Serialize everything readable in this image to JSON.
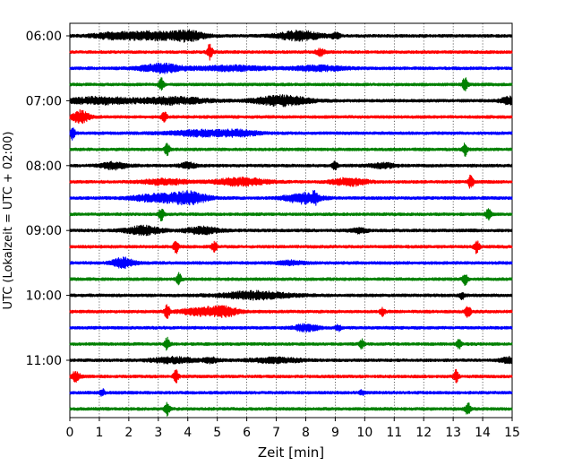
{
  "chart_data": {
    "type": "line",
    "title": "",
    "xlabel": "Zeit  [min]",
    "ylabel": "UTC (Lokalzeit = UTC + 02:00)",
    "xlim": [
      0,
      15
    ],
    "x_ticks": [
      "0",
      "1",
      "2",
      "3",
      "4",
      "5",
      "6",
      "7",
      "8",
      "9",
      "10",
      "11",
      "12",
      "13",
      "14",
      "15"
    ],
    "hour_labels": [
      "06:00",
      "07:00",
      "08:00",
      "09:00",
      "10:00",
      "11:00"
    ],
    "grid": "vertical dotted at each minute",
    "legend": "none",
    "series_colors": [
      "#000000",
      "#ff0000",
      "#0000ff",
      "#008000"
    ],
    "traces": [
      {
        "start": "06:00",
        "color": "#000000",
        "bursts": [
          [
            1.5,
            0.5,
            0.6
          ],
          [
            2.8,
            0.6,
            0.8
          ],
          [
            4.0,
            0.4,
            1.0
          ],
          [
            7.8,
            0.5,
            1.0
          ],
          [
            9.0,
            0.1,
            0.6
          ]
        ]
      },
      {
        "start": "06:15",
        "color": "#ff0000",
        "bursts": [
          [
            4.75,
            0.06,
            1.8
          ],
          [
            8.5,
            0.1,
            0.7
          ]
        ]
      },
      {
        "start": "06:30",
        "color": "#0000ff",
        "bursts": [
          [
            3.1,
            0.5,
            0.9
          ],
          [
            5.5,
            0.8,
            0.5
          ],
          [
            8.5,
            0.6,
            0.5
          ]
        ]
      },
      {
        "start": "06:45",
        "color": "#008000",
        "bursts": [
          [
            3.1,
            0.06,
            1.3
          ],
          [
            13.4,
            0.06,
            1.6
          ]
        ]
      },
      {
        "start": "07:00",
        "color": "#000000",
        "bursts": [
          [
            1.0,
            0.8,
            0.7
          ],
          [
            3.5,
            0.8,
            0.7
          ],
          [
            7.2,
            0.6,
            1.1
          ],
          [
            14.9,
            0.2,
            0.8
          ]
        ]
      },
      {
        "start": "07:15",
        "color": "#ff0000",
        "bursts": [
          [
            0.35,
            0.2,
            1.3
          ],
          [
            3.2,
            0.06,
            1.4
          ]
        ]
      },
      {
        "start": "07:30",
        "color": "#0000ff",
        "bursts": [
          [
            0.1,
            0.05,
            1.4
          ],
          [
            4.5,
            0.8,
            0.6
          ],
          [
            5.8,
            0.4,
            0.5
          ]
        ]
      },
      {
        "start": "07:45",
        "color": "#008000",
        "bursts": [
          [
            3.3,
            0.06,
            1.2
          ],
          [
            13.4,
            0.06,
            1.3
          ]
        ]
      },
      {
        "start": "08:00",
        "color": "#000000",
        "bursts": [
          [
            1.5,
            0.3,
            0.7
          ],
          [
            4.0,
            0.2,
            0.6
          ],
          [
            9.0,
            0.06,
            1.0
          ],
          [
            10.6,
            0.3,
            0.5
          ]
        ]
      },
      {
        "start": "08:15",
        "color": "#ff0000",
        "bursts": [
          [
            3.2,
            0.5,
            0.6
          ],
          [
            5.8,
            0.6,
            0.8
          ],
          [
            9.5,
            0.4,
            0.8
          ],
          [
            13.6,
            0.06,
            1.5
          ]
        ]
      },
      {
        "start": "08:30",
        "color": "#0000ff",
        "bursts": [
          [
            3.0,
            0.6,
            0.8
          ],
          [
            4.1,
            0.4,
            1.2
          ],
          [
            7.9,
            0.4,
            1.1
          ],
          [
            8.3,
            0.06,
            1.3
          ]
        ]
      },
      {
        "start": "08:45",
        "color": "#008000",
        "bursts": [
          [
            3.1,
            0.06,
            1.3
          ],
          [
            14.2,
            0.06,
            1.3
          ]
        ]
      },
      {
        "start": "09:00",
        "color": "#000000",
        "bursts": [
          [
            2.5,
            0.4,
            0.9
          ],
          [
            4.5,
            0.4,
            0.7
          ],
          [
            9.8,
            0.2,
            0.5
          ]
        ]
      },
      {
        "start": "09:15",
        "color": "#ff0000",
        "bursts": [
          [
            3.6,
            0.06,
            1.4
          ],
          [
            4.9,
            0.06,
            1.0
          ],
          [
            13.8,
            0.06,
            1.4
          ]
        ]
      },
      {
        "start": "09:30",
        "color": "#0000ff",
        "bursts": [
          [
            1.8,
            0.25,
            1.1
          ],
          [
            7.5,
            0.3,
            0.4
          ]
        ]
      },
      {
        "start": "09:45",
        "color": "#008000",
        "bursts": [
          [
            3.7,
            0.06,
            1.2
          ],
          [
            13.4,
            0.06,
            1.2
          ]
        ]
      },
      {
        "start": "10:00",
        "color": "#000000",
        "bursts": [
          [
            6.3,
            0.8,
            0.8
          ],
          [
            13.3,
            0.06,
            0.7
          ]
        ]
      },
      {
        "start": "10:15",
        "color": "#ff0000",
        "bursts": [
          [
            3.3,
            0.06,
            1.5
          ],
          [
            4.5,
            0.5,
            0.8
          ],
          [
            5.3,
            0.3,
            0.9
          ],
          [
            10.6,
            0.06,
            0.8
          ],
          [
            13.5,
            0.06,
            1.4
          ]
        ]
      },
      {
        "start": "10:30",
        "color": "#0000ff",
        "bursts": [
          [
            8.0,
            0.3,
            0.7
          ],
          [
            9.1,
            0.06,
            0.7
          ]
        ]
      },
      {
        "start": "10:45",
        "color": "#008000",
        "bursts": [
          [
            3.3,
            0.06,
            1.3
          ],
          [
            9.9,
            0.06,
            0.9
          ],
          [
            13.2,
            0.06,
            1.0
          ]
        ]
      },
      {
        "start": "11:00",
        "color": "#000000",
        "bursts": [
          [
            3.5,
            0.5,
            0.6
          ],
          [
            4.8,
            0.2,
            0.5
          ],
          [
            7.0,
            0.6,
            0.5
          ],
          [
            14.9,
            0.2,
            0.6
          ]
        ]
      },
      {
        "start": "11:15",
        "color": "#ff0000",
        "bursts": [
          [
            0.2,
            0.1,
            1.0
          ],
          [
            3.6,
            0.06,
            1.3
          ],
          [
            13.1,
            0.06,
            1.3
          ]
        ]
      },
      {
        "start": "11:30",
        "color": "#0000ff",
        "bursts": [
          [
            1.1,
            0.06,
            0.7
          ],
          [
            9.9,
            0.06,
            0.5
          ]
        ]
      },
      {
        "start": "11:45",
        "color": "#008000",
        "bursts": [
          [
            3.3,
            0.06,
            1.3
          ],
          [
            13.5,
            0.06,
            1.3
          ]
        ]
      }
    ]
  }
}
